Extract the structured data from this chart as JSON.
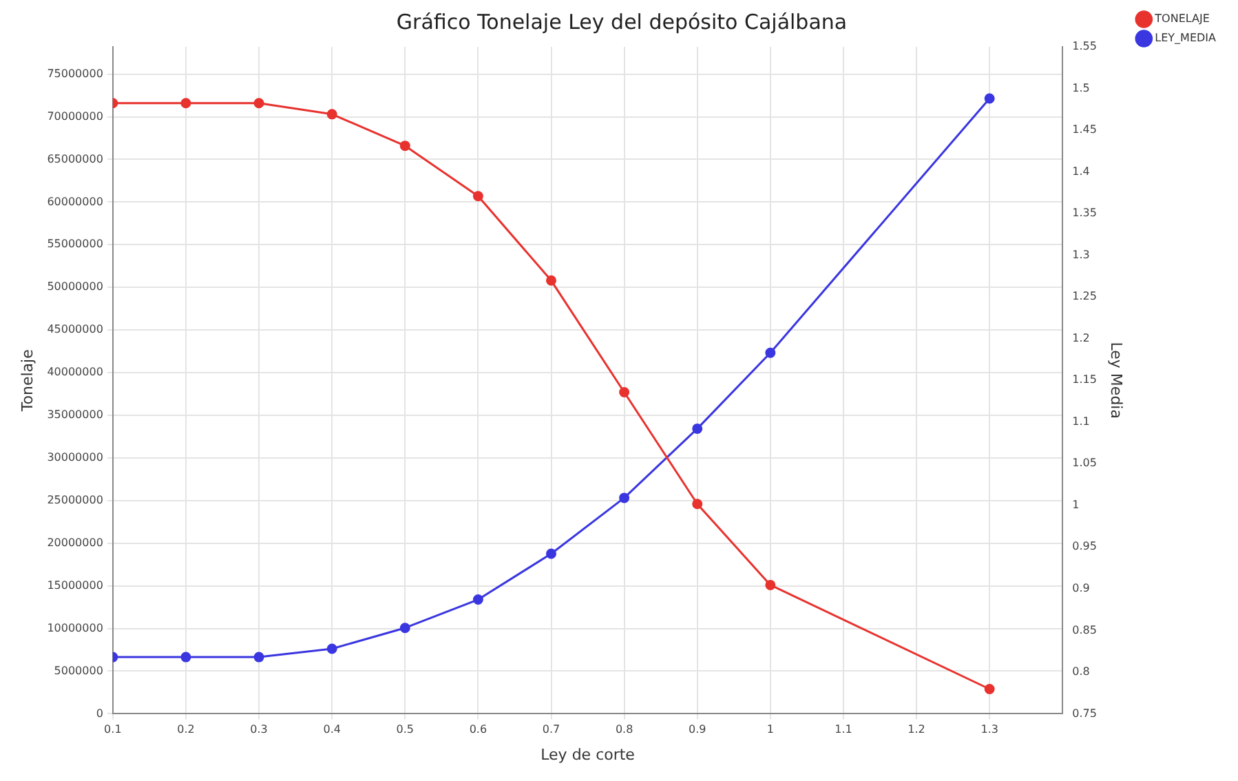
{
  "chart_data": {
    "type": "line",
    "title": "Gráfico Tonelaje Ley del depósito Cajálbana",
    "xlabel": "Ley de corte",
    "ylabel": "Tonelaje",
    "y2label": "Ley Media",
    "x": [
      0.1,
      0.2,
      0.3,
      0.4,
      0.5,
      0.6,
      0.7,
      0.8,
      0.9,
      1,
      1.3
    ],
    "series": [
      {
        "name": "TONELAJE",
        "color": "#e8322e",
        "values": [
          71600000,
          71600000,
          71600000,
          70300000,
          66600000,
          60700000,
          50800000,
          37700000,
          24600000,
          15100000,
          2900000
        ]
      },
      {
        "name": "LEY_MEDIA",
        "color": "#3a36e0",
        "axis": "y2",
        "values": [
          0.818,
          0.818,
          0.818,
          0.828,
          0.853,
          0.887,
          0.942,
          1.009,
          1.092,
          1.183,
          1.488
        ]
      }
    ],
    "xlim": [
      0.1,
      1.4
    ],
    "xticks": [
      0.1,
      0.2,
      0.3,
      0.4,
      0.5,
      0.6,
      0.7,
      0.8,
      0.9,
      1,
      1.1,
      1.2,
      1.3
    ],
    "ylim": [
      0,
      78200000
    ],
    "yticks": [
      0,
      5000000,
      10000000,
      15000000,
      20000000,
      25000000,
      30000000,
      35000000,
      40000000,
      45000000,
      50000000,
      55000000,
      60000000,
      65000000,
      70000000,
      75000000
    ],
    "y2lim": [
      0.75,
      1.55
    ],
    "y2ticks": [
      0.75,
      0.8,
      0.85,
      0.9,
      0.95,
      1,
      1.05,
      1.1,
      1.15,
      1.2,
      1.25,
      1.3,
      1.35,
      1.4,
      1.45,
      1.5,
      1.55
    ],
    "grid": true,
    "legend": "top right",
    "marker": "circle",
    "line_style": "solid"
  }
}
